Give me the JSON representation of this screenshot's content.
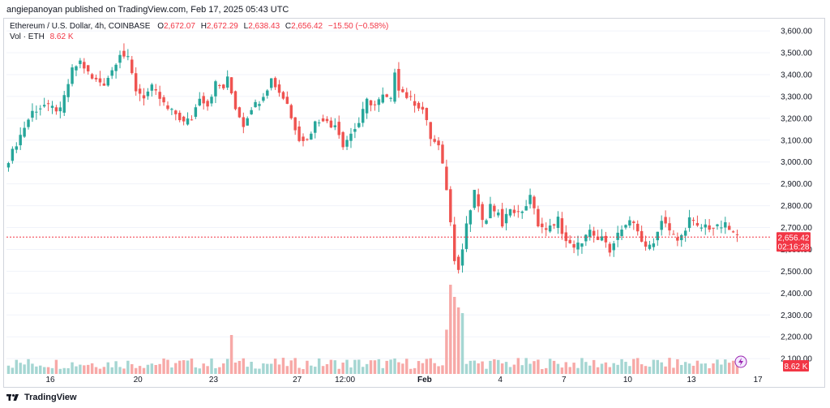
{
  "publisher_line": "angiepanoyan published on TradingView.com, Feb 17, 2025 05:43 UTC",
  "legend": {
    "symbol": "Ethereum / U.S. Dollar, 4h, COINBASE",
    "o_label": "O",
    "o_value": "2,672.07",
    "h_label": "H",
    "h_value": "2,672.29",
    "l_label": "L",
    "l_value": "2,638.43",
    "c_label": "C",
    "c_value": "2,656.42",
    "change": "−15.50 (−0.58%)",
    "vol_label": "Vol · ETH",
    "vol_value": "8.62 K"
  },
  "footer": {
    "brand": "TradingView"
  },
  "colors": {
    "up": "#26a69a",
    "down": "#ef5350",
    "vol_up": "#a5d6d2",
    "vol_down": "#f7a9a7",
    "price_tag": "#f23645",
    "grid": "#f0f3fa"
  },
  "chart_data": {
    "type": "candlestick",
    "title": "Ethereum / U.S. Dollar, 4h, COINBASE",
    "y_ticks": [
      "3,600.00",
      "3,500.00",
      "3,400.00",
      "3,300.00",
      "3,200.00",
      "3,100.00",
      "3,000.00",
      "2,900.00",
      "2,800.00",
      "2,700.00",
      "2,600.00",
      "2,500.00",
      "2,400.00",
      "2,300.00",
      "2,200.00",
      "2,100.00"
    ],
    "ylim": [
      2030,
      3630
    ],
    "x_ticks": [
      "16",
      "20",
      "23",
      "27",
      "12:00",
      "Feb",
      "4",
      "7",
      "10",
      "13",
      "17"
    ],
    "last_price_label": "2,656.42",
    "countdown_label": "02:16:28",
    "volume_label": "8.62 K",
    "last_price": 2656.42,
    "close_path": [
      [
        0,
        3010
      ],
      [
        4,
        3160
      ],
      [
        6,
        3230
      ],
      [
        9,
        3260
      ],
      [
        13,
        3235
      ],
      [
        16,
        3420
      ],
      [
        18,
        3460
      ],
      [
        21,
        3380
      ],
      [
        24,
        3360
      ],
      [
        26,
        3420
      ],
      [
        28,
        3500
      ],
      [
        30,
        3470
      ],
      [
        32,
        3330
      ],
      [
        34,
        3300
      ],
      [
        36,
        3340
      ],
      [
        38,
        3290
      ],
      [
        40,
        3240
      ],
      [
        42,
        3220
      ],
      [
        44,
        3180
      ],
      [
        46,
        3200
      ],
      [
        48,
        3300
      ],
      [
        50,
        3260
      ],
      [
        52,
        3360
      ],
      [
        54,
        3340
      ],
      [
        55,
        3380
      ],
      [
        57,
        3250
      ],
      [
        59,
        3170
      ],
      [
        61,
        3250
      ],
      [
        63,
        3280
      ],
      [
        65,
        3340
      ],
      [
        66,
        3380
      ],
      [
        68,
        3320
      ],
      [
        70,
        3270
      ],
      [
        71,
        3200
      ],
      [
        73,
        3110
      ],
      [
        75,
        3100
      ],
      [
        77,
        3180
      ],
      [
        79,
        3200
      ],
      [
        81,
        3160
      ],
      [
        82,
        3180
      ],
      [
        84,
        3080
      ],
      [
        86,
        3130
      ],
      [
        88,
        3180
      ],
      [
        89,
        3230
      ],
      [
        90,
        3280
      ],
      [
        92,
        3260
      ],
      [
        94,
        3300
      ],
      [
        96,
        3280
      ],
      [
        97,
        3420
      ],
      [
        98,
        3340
      ],
      [
        100,
        3300
      ],
      [
        102,
        3270
      ],
      [
        104,
        3240
      ],
      [
        105,
        3180
      ],
      [
        106,
        3110
      ],
      [
        107,
        3090
      ],
      [
        108,
        3070
      ],
      [
        109,
        2980
      ],
      [
        110,
        2880
      ],
      [
        111,
        2720
      ],
      [
        112,
        2560
      ],
      [
        113,
        2520
      ],
      [
        114,
        2600
      ],
      [
        115,
        2720
      ],
      [
        116,
        2780
      ],
      [
        117,
        2860
      ],
      [
        118,
        2800
      ],
      [
        119,
        2720
      ],
      [
        120,
        2740
      ],
      [
        121,
        2800
      ],
      [
        122,
        2760
      ],
      [
        123,
        2780
      ],
      [
        124,
        2720
      ],
      [
        126,
        2790
      ],
      [
        128,
        2760
      ],
      [
        130,
        2800
      ],
      [
        131,
        2840
      ],
      [
        132,
        2780
      ],
      [
        133,
        2720
      ],
      [
        134,
        2700
      ],
      [
        135,
        2680
      ],
      [
        136,
        2720
      ],
      [
        137,
        2700
      ],
      [
        138,
        2740
      ],
      [
        139,
        2680
      ],
      [
        140,
        2640
      ],
      [
        141,
        2620
      ],
      [
        142,
        2600
      ],
      [
        143,
        2620
      ],
      [
        144,
        2640
      ],
      [
        145,
        2660
      ],
      [
        146,
        2680
      ],
      [
        147,
        2650
      ],
      [
        148,
        2640
      ],
      [
        149,
        2660
      ],
      [
        150,
        2620
      ],
      [
        151,
        2600
      ],
      [
        152,
        2640
      ],
      [
        153,
        2670
      ],
      [
        154,
        2690
      ],
      [
        155,
        2700
      ],
      [
        156,
        2720
      ],
      [
        157,
        2720
      ],
      [
        158,
        2690
      ],
      [
        159,
        2640
      ],
      [
        160,
        2600
      ],
      [
        161,
        2620
      ],
      [
        162,
        2640
      ],
      [
        163,
        2680
      ],
      [
        164,
        2740
      ],
      [
        165,
        2720
      ],
      [
        166,
        2680
      ],
      [
        167,
        2660
      ],
      [
        168,
        2640
      ],
      [
        169,
        2660
      ],
      [
        170,
        2700
      ],
      [
        171,
        2740
      ],
      [
        172,
        2720
      ],
      [
        173,
        2700
      ],
      [
        174,
        2700
      ],
      [
        175,
        2710
      ],
      [
        176,
        2700
      ],
      [
        178,
        2700
      ],
      [
        180,
        2710
      ],
      [
        181,
        2690
      ],
      [
        182,
        2672
      ],
      [
        183,
        2656
      ]
    ]
  }
}
